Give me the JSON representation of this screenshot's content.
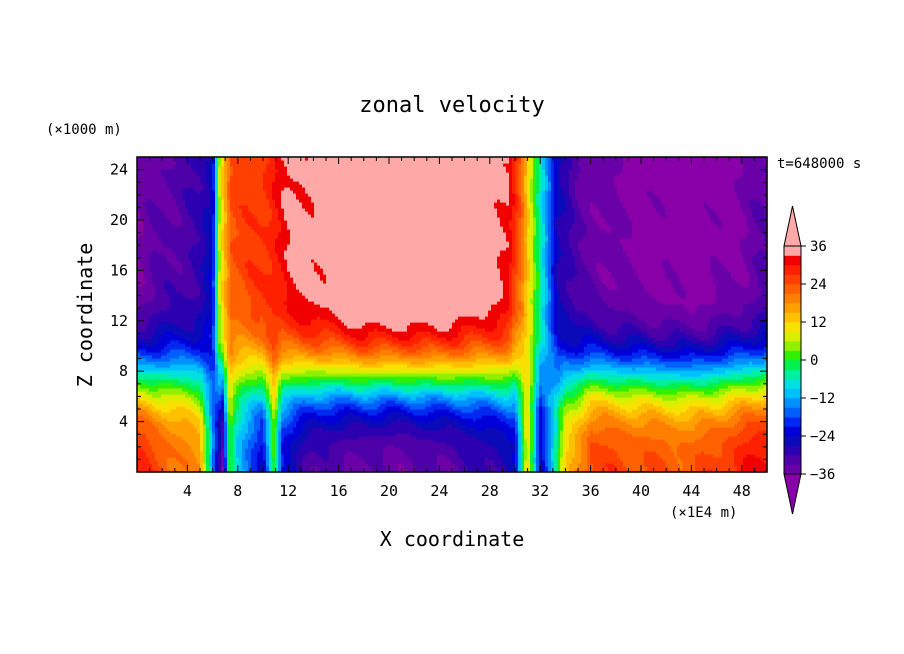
{
  "chart_data": {
    "type": "heatmap",
    "title": "zonal velocity",
    "xlabel": "X coordinate",
    "ylabel": "Z coordinate",
    "x_unit": "(×1E4 m)",
    "y_unit": "(×1000 m)",
    "time_label": "t=648000 s",
    "xlim": [
      0,
      50
    ],
    "ylim": [
      0,
      25
    ],
    "x_ticks": [
      4,
      8,
      12,
      16,
      20,
      24,
      28,
      32,
      36,
      40,
      44,
      48
    ],
    "y_ticks": [
      4,
      8,
      12,
      16,
      20,
      24
    ],
    "colorbar": {
      "levels": [
        -39,
        -36,
        -33,
        -30,
        -27,
        -24,
        -21,
        -18,
        -15,
        -12,
        -9,
        -6,
        -3,
        0,
        3,
        6,
        9,
        12,
        15,
        18,
        21,
        24,
        27,
        30,
        33,
        36,
        39
      ],
      "tick_labels": [
        36,
        24,
        12,
        0,
        -12,
        -24,
        -36
      ],
      "colors": [
        "#8a00a8",
        "#6a00a8",
        "#4d00a8",
        "#2c00b0",
        "#0a0ab8",
        "#0000d8",
        "#0028f0",
        "#0060ff",
        "#0090ff",
        "#00bfff",
        "#00e0e0",
        "#00f0a0",
        "#00f050",
        "#30f000",
        "#90f000",
        "#d8f000",
        "#f8e000",
        "#ffc000",
        "#ffa000",
        "#ff8000",
        "#ff6000",
        "#ff4000",
        "#ff2000",
        "#f00000",
        "#ffa8a8"
      ],
      "over_color": "#ffa8a8",
      "under_color": "#8a00a8"
    },
    "field": {
      "x_profile_top": [
        [
          0,
          -36
        ],
        [
          2,
          -33
        ],
        [
          5,
          -30
        ],
        [
          6,
          -24
        ],
        [
          6.6,
          10
        ],
        [
          7.5,
          24
        ],
        [
          10,
          27
        ],
        [
          11,
          30
        ],
        [
          12,
          33
        ],
        [
          15,
          36
        ],
        [
          18,
          40
        ],
        [
          24,
          40
        ],
        [
          28,
          36
        ],
        [
          29.5,
          33
        ],
        [
          30.5,
          21
        ],
        [
          31.5,
          3
        ],
        [
          32.5,
          -12
        ],
        [
          33.5,
          -27
        ],
        [
          35,
          -33
        ],
        [
          38,
          -36
        ],
        [
          44,
          -39
        ],
        [
          48,
          -36
        ],
        [
          50,
          -33
        ]
      ],
      "x_profile_bottom": [
        [
          0,
          30
        ],
        [
          5,
          18
        ],
        [
          6,
          -12
        ],
        [
          6.8,
          -36
        ],
        [
          7.3,
          0
        ],
        [
          8,
          -12
        ],
        [
          10,
          -24
        ],
        [
          10.9,
          0
        ],
        [
          11.5,
          -24
        ],
        [
          14,
          -33
        ],
        [
          20,
          -36
        ],
        [
          26,
          -33
        ],
        [
          30,
          -27
        ],
        [
          31,
          12
        ],
        [
          32,
          -24
        ],
        [
          33,
          -9
        ],
        [
          34,
          12
        ],
        [
          36,
          27
        ],
        [
          44,
          24
        ],
        [
          50,
          33
        ]
      ],
      "z_transition_height": 7.5,
      "z_transition_width": 4.5
    }
  }
}
